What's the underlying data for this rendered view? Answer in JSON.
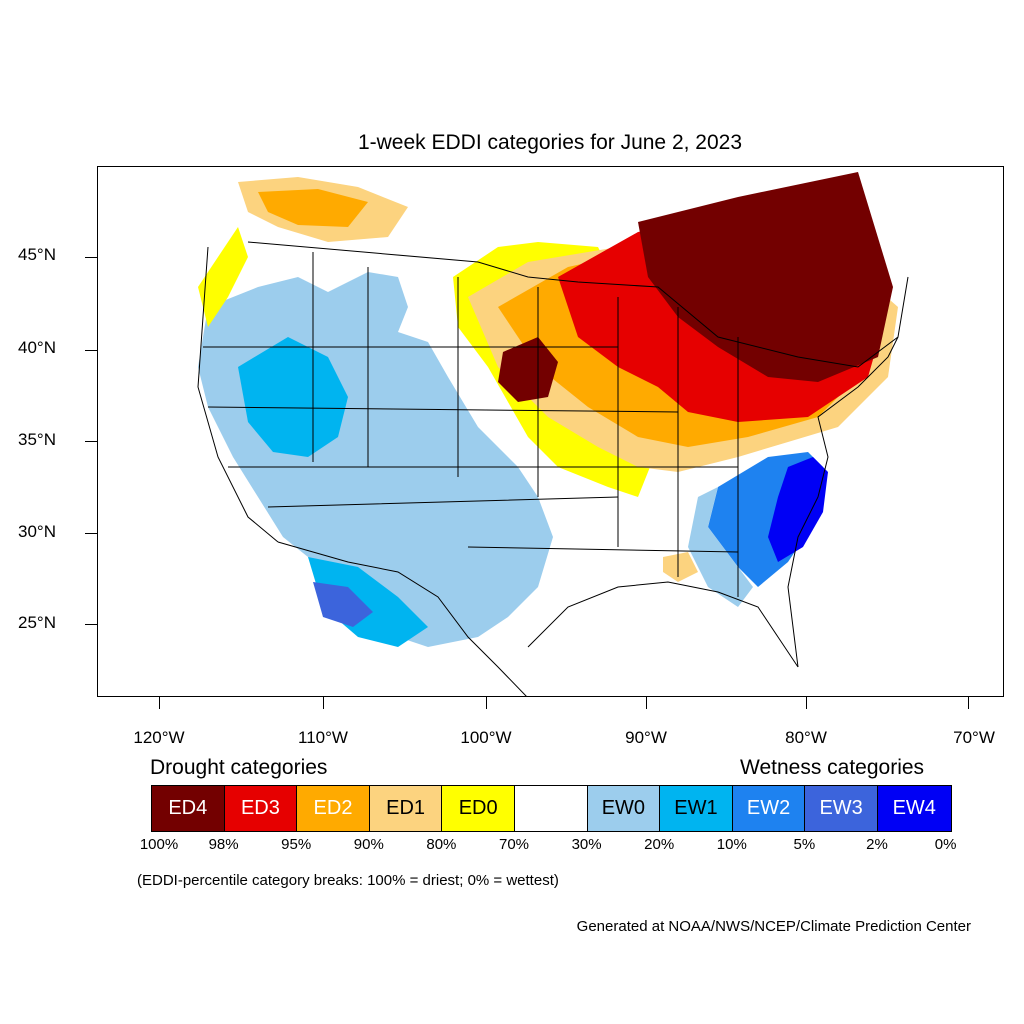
{
  "title": "1-week EDDI categories for June 2, 2023",
  "latitude_labels": [
    "45°N",
    "40°N",
    "35°N",
    "30°N",
    "25°N"
  ],
  "longitude_labels": [
    "120°W",
    "110°W",
    "100°W",
    "90°W",
    "80°W",
    "70°W"
  ],
  "legend": {
    "drought_heading": "Drought categories",
    "wetness_heading": "Wetness categories",
    "categories": [
      {
        "label": "ED4",
        "color": "#730000",
        "text_color": "#ffffff"
      },
      {
        "label": "ED3",
        "color": "#e60000",
        "text_color": "#ffffff"
      },
      {
        "label": "ED2",
        "color": "#ffaa00",
        "text_color": "#ffffff"
      },
      {
        "label": "ED1",
        "color": "#fcd37f",
        "text_color": "#000000"
      },
      {
        "label": "ED0",
        "color": "#ffff00",
        "text_color": "#000000"
      },
      {
        "label": "",
        "color": "#ffffff",
        "text_color": "#000000"
      },
      {
        "label": "EW0",
        "color": "#9ccded",
        "text_color": "#000000"
      },
      {
        "label": "EW1",
        "color": "#00b4f0",
        "text_color": "#000000"
      },
      {
        "label": "EW2",
        "color": "#1e82f0",
        "text_color": "#ffffff"
      },
      {
        "label": "EW3",
        "color": "#3c64dc",
        "text_color": "#ffffff"
      },
      {
        "label": "EW4",
        "color": "#0000f5",
        "text_color": "#ffffff"
      }
    ],
    "percent_breaks": [
      "100%",
      "98%",
      "95%",
      "90%",
      "80%",
      "70%",
      "30%",
      "20%",
      "10%",
      "5%",
      "2%",
      "0%"
    ]
  },
  "note": "(EDDI-percentile category breaks: 100% = driest; 0% = wettest)",
  "credit": "Generated at NOAA/NWS/NCEP/Climate Prediction Center"
}
